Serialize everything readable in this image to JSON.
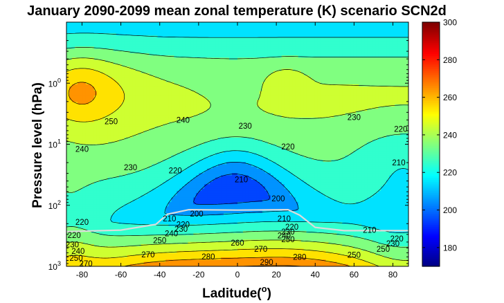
{
  "chart_data": {
    "type": "contour",
    "title": "January 2090-2099 mean zonal temperature (K) scenario SCN2d",
    "xlabel": "Laditude(",
    "xlabel_sup": "o",
    "xlabel_end": ")",
    "ylabel": "Pressure level (hPa)",
    "x_range": [
      -88,
      88
    ],
    "y_range_hpa": [
      0.1,
      1000
    ],
    "y_scale": "log",
    "y_reversed": true,
    "x_ticks": [
      "-80",
      "-60",
      "-40",
      "-20",
      "0",
      "20",
      "40",
      "60",
      "80"
    ],
    "y_ticks": [
      {
        "base": "10",
        "exp": "0",
        "hpa": 1
      },
      {
        "base": "10",
        "exp": "1",
        "hpa": 10
      },
      {
        "base": "10",
        "exp": "2",
        "hpa": 100
      },
      {
        "base": "10",
        "exp": "3",
        "hpa": 1000
      }
    ],
    "colorbar": {
      "range": [
        170,
        300
      ],
      "ticks": [
        "180",
        "200",
        "220",
        "240",
        "260",
        "280",
        "300"
      ],
      "colormap": "jet"
    },
    "contour_interval_K": 10,
    "contour_labels": [
      {
        "text": "250",
        "lat": -65,
        "hpa": 4.2
      },
      {
        "text": "240",
        "lat": -28,
        "hpa": 4.0
      },
      {
        "text": "230",
        "lat": 4,
        "hpa": 5.0
      },
      {
        "text": "230",
        "lat": 60,
        "hpa": 3.6
      },
      {
        "text": "220",
        "lat": 84,
        "hpa": 5.6
      },
      {
        "text": "240",
        "lat": -80,
        "hpa": 12
      },
      {
        "text": "220",
        "lat": 26,
        "hpa": 11
      },
      {
        "text": "230",
        "lat": -55,
        "hpa": 24
      },
      {
        "text": "220",
        "lat": -32,
        "hpa": 27
      },
      {
        "text": "210",
        "lat": 83,
        "hpa": 20
      },
      {
        "text": "210",
        "lat": 2,
        "hpa": 38
      },
      {
        "text": "200",
        "lat": 21,
        "hpa": 78
      },
      {
        "text": "200",
        "lat": -21,
        "hpa": 138
      },
      {
        "text": "210",
        "lat": -35,
        "hpa": 165
      },
      {
        "text": "210",
        "lat": 24,
        "hpa": 165
      },
      {
        "text": "220",
        "lat": -80,
        "hpa": 188
      },
      {
        "text": "220",
        "lat": -28,
        "hpa": 205
      },
      {
        "text": "220",
        "lat": 28,
        "hpa": 225
      },
      {
        "text": "230",
        "lat": -29,
        "hpa": 245
      },
      {
        "text": "230",
        "lat": 26,
        "hpa": 270
      },
      {
        "text": "210",
        "lat": 68,
        "hpa": 255
      },
      {
        "text": "240",
        "lat": -34,
        "hpa": 290
      },
      {
        "text": "240",
        "lat": 24,
        "hpa": 315
      },
      {
        "text": "220",
        "lat": 82,
        "hpa": 350
      },
      {
        "text": "220",
        "lat": -84,
        "hpa": 310
      },
      {
        "text": "250",
        "lat": -40,
        "hpa": 375
      },
      {
        "text": "250",
        "lat": 26,
        "hpa": 360
      },
      {
        "text": "260",
        "lat": 0,
        "hpa": 410
      },
      {
        "text": "230",
        "lat": 80,
        "hpa": 420
      },
      {
        "text": "270",
        "lat": 12,
        "hpa": 520
      },
      {
        "text": "250",
        "lat": 75,
        "hpa": 520
      },
      {
        "text": "280",
        "lat": -15,
        "hpa": 690
      },
      {
        "text": "280",
        "lat": 32,
        "hpa": 700
      },
      {
        "text": "250",
        "lat": 60,
        "hpa": 650
      },
      {
        "text": "290",
        "lat": 15,
        "hpa": 850
      },
      {
        "text": "270",
        "lat": -46,
        "hpa": 640
      },
      {
        "text": "230",
        "lat": -85,
        "hpa": 440
      },
      {
        "text": "240",
        "lat": -82,
        "hpa": 560
      },
      {
        "text": "250",
        "lat": -83,
        "hpa": 730
      },
      {
        "text": "270",
        "lat": -78,
        "hpa": 900
      }
    ],
    "tropopause_line_color": "#dcdcdc"
  }
}
